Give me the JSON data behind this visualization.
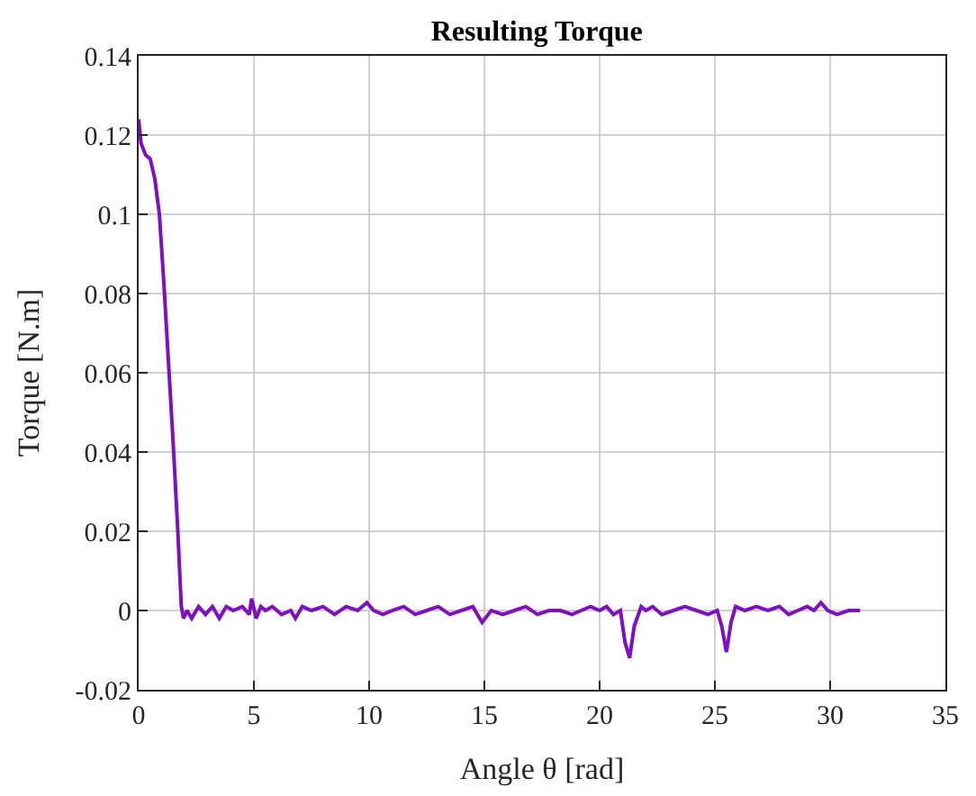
{
  "chart_data": {
    "type": "line",
    "title": "Resulting Torque",
    "xlabel": "Angle θ [rad]",
    "ylabel": "Torque [N.m]",
    "xlim": [
      0,
      35
    ],
    "xticks": [
      0,
      5,
      10,
      15,
      20,
      25,
      30,
      35
    ],
    "ylim": [
      -0.02,
      0.14
    ],
    "yticks": [
      -0.02,
      0,
      0.02,
      0.04,
      0.06,
      0.08,
      0.1,
      0.12,
      0.14
    ],
    "grid": true,
    "series": [
      {
        "color": "#7f0fbf",
        "x": [
          0,
          0.1,
          0.3,
          0.5,
          0.7,
          0.9,
          1.1,
          1.3,
          1.5,
          1.7,
          1.85,
          1.95,
          2.1,
          2.3,
          2.6,
          2.9,
          3.2,
          3.5,
          3.8,
          4.1,
          4.5,
          4.8,
          4.9,
          5.1,
          5.3,
          5.5,
          5.8,
          6.2,
          6.6,
          6.8,
          7.1,
          7.5,
          8,
          8.5,
          9,
          9.5,
          9.9,
          10.2,
          10.6,
          11,
          11.5,
          12,
          12.5,
          13,
          13.5,
          14,
          14.5,
          14.7,
          14.9,
          15.3,
          15.8,
          16.3,
          16.8,
          17.3,
          17.8,
          18.3,
          18.8,
          19.2,
          19.6,
          20,
          20.3,
          20.6,
          20.9,
          21.1,
          21.3,
          21.5,
          21.8,
          22,
          22.3,
          22.7,
          23.2,
          23.7,
          24.2,
          24.7,
          25.1,
          25.3,
          25.5,
          25.7,
          25.9,
          26.3,
          26.8,
          27.3,
          27.8,
          28.2,
          28.6,
          29,
          29.3,
          29.6,
          29.9,
          30.3,
          30.8,
          31.3
        ],
        "values": [
          0.124,
          0.118,
          0.115,
          0.114,
          0.109,
          0.1,
          0.082,
          0.062,
          0.042,
          0.02,
          0.001,
          -0.002,
          0.0,
          -0.002,
          0.001,
          -0.001,
          0.001,
          -0.002,
          0.001,
          0.0,
          0.001,
          -0.001,
          0.003,
          -0.002,
          0.001,
          0.0,
          0.001,
          -0.001,
          0.0,
          -0.002,
          0.001,
          0.0,
          0.001,
          -0.001,
          0.001,
          0.0,
          0.002,
          0.0,
          -0.001,
          0.0,
          0.001,
          -0.001,
          0.0,
          0.001,
          -0.001,
          0.0,
          0.001,
          -0.001,
          -0.003,
          0.0,
          -0.001,
          0.0,
          0.001,
          -0.001,
          0.0,
          0.0,
          -0.001,
          0.0,
          0.001,
          0.0,
          0.001,
          -0.001,
          0.0,
          -0.008,
          -0.012,
          -0.004,
          0.001,
          0.0,
          0.001,
          -0.001,
          0.0,
          0.001,
          0.0,
          -0.001,
          0.0,
          -0.004,
          -0.0105,
          -0.003,
          0.001,
          0.0,
          0.001,
          0.0,
          0.001,
          -0.001,
          0.0,
          0.001,
          0.0,
          0.002,
          0.0,
          -0.001,
          0.0,
          0.0
        ]
      }
    ]
  }
}
